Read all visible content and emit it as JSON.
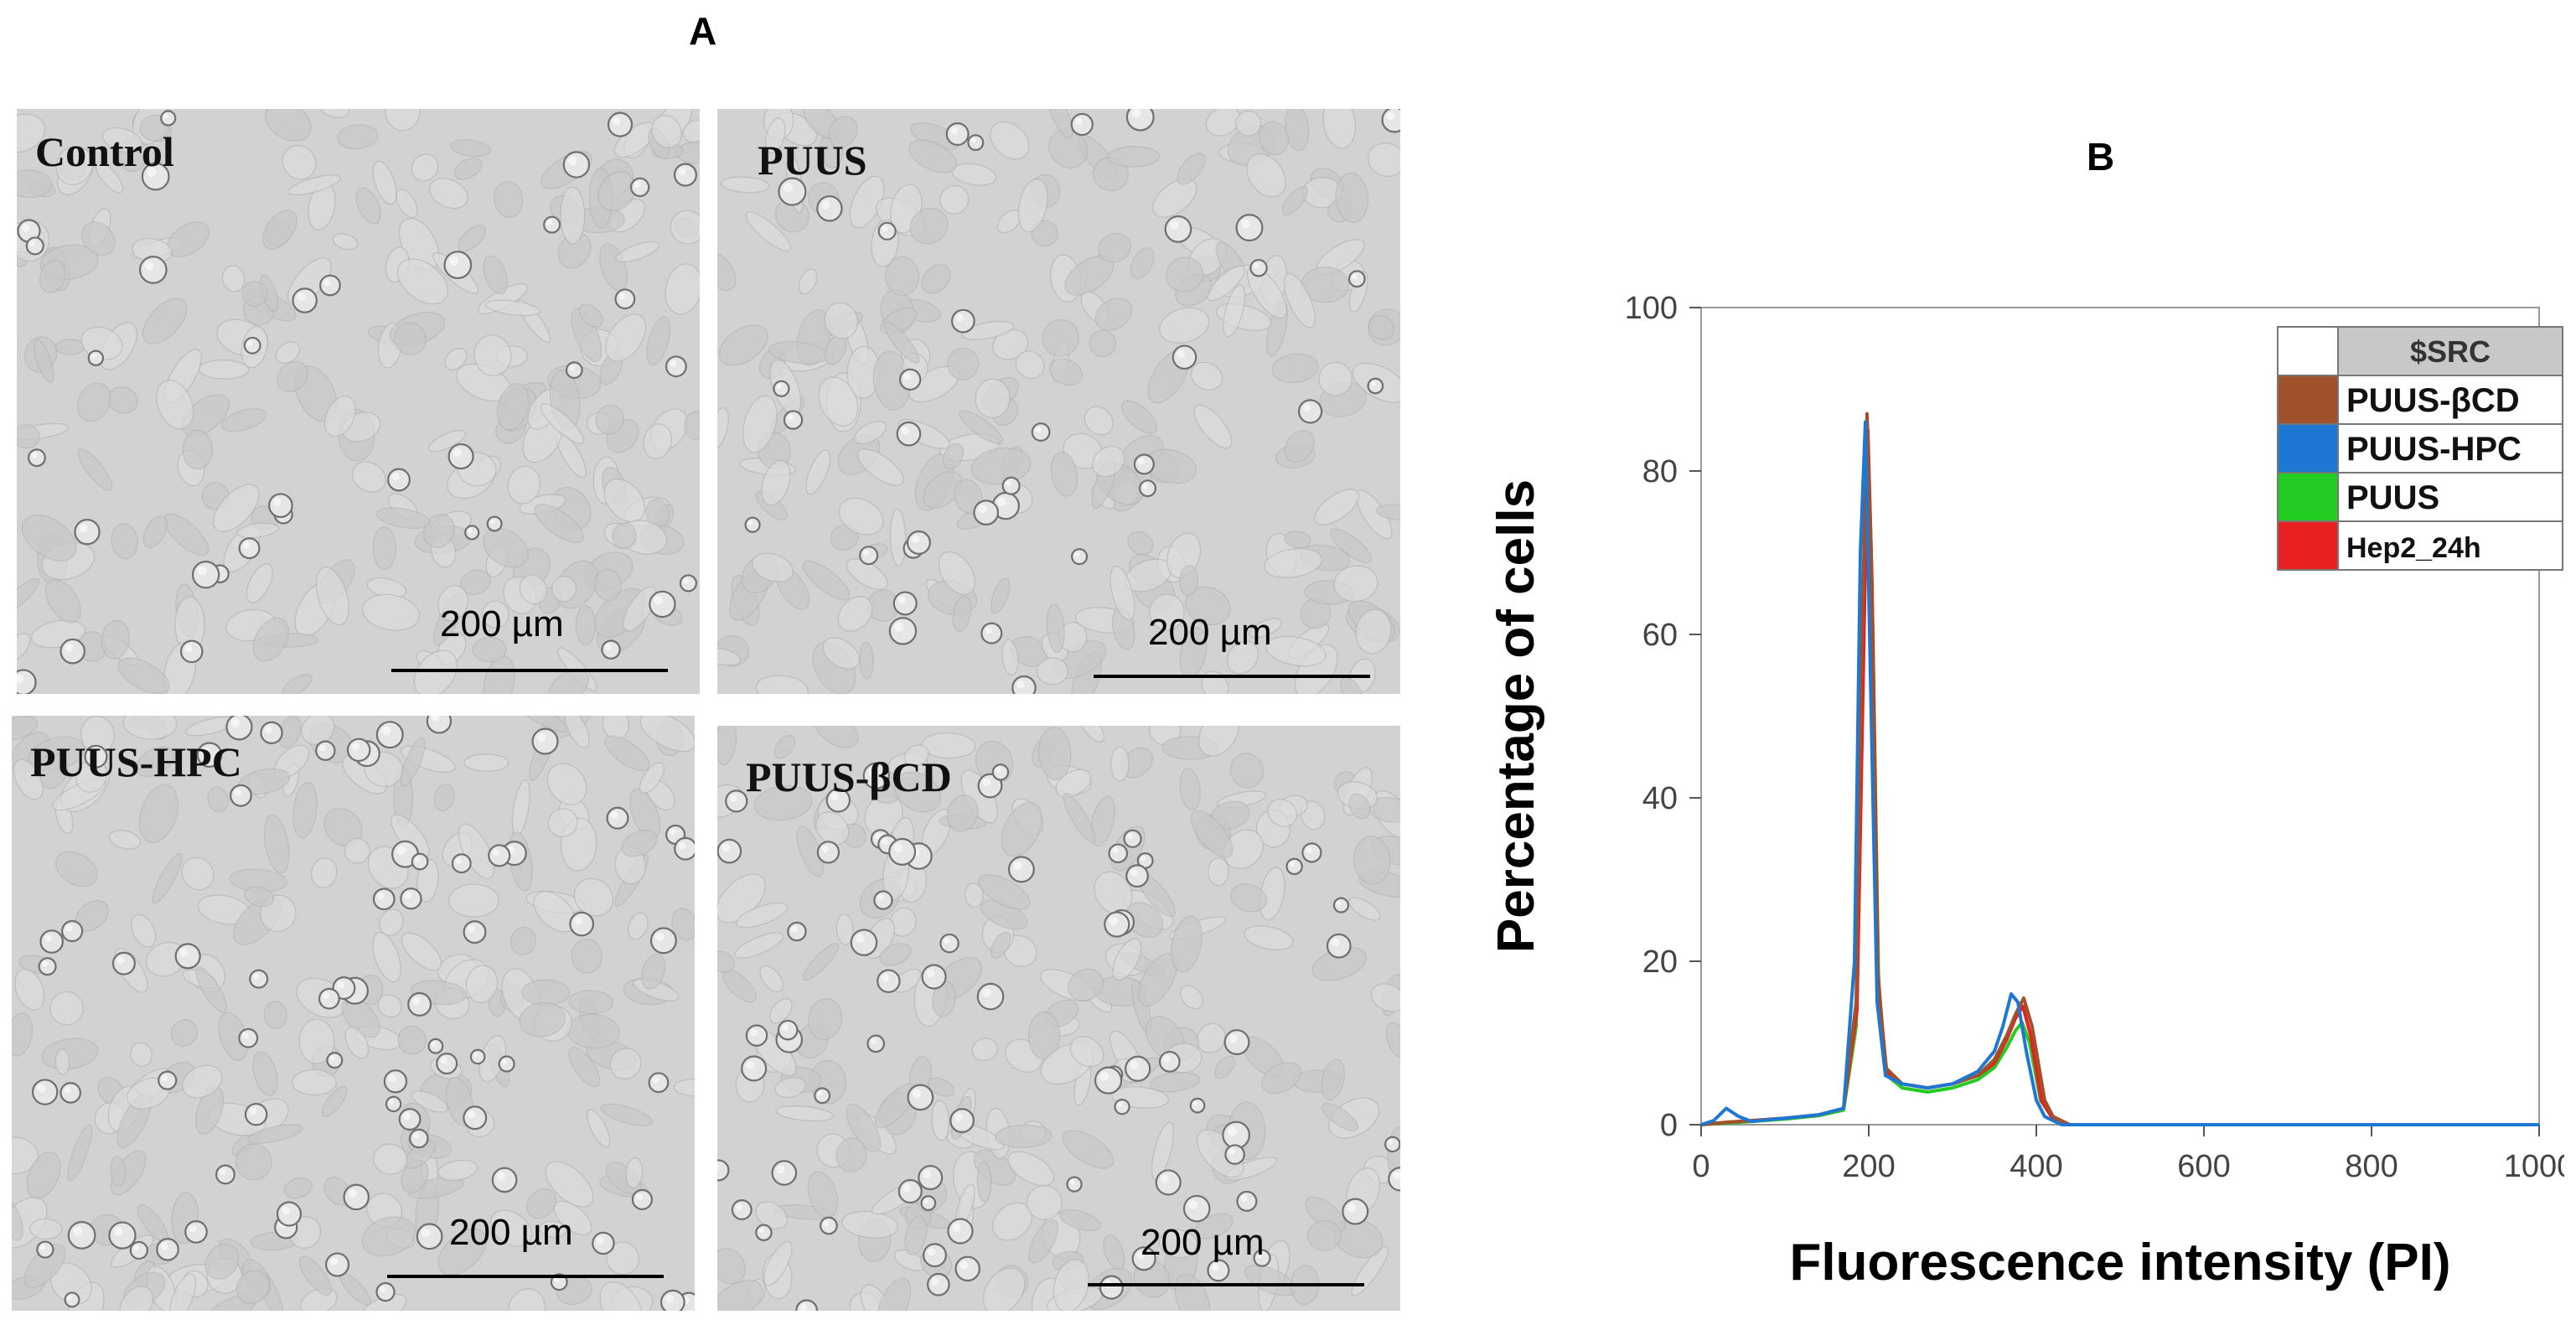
{
  "panel_a": {
    "letter": "A",
    "images": [
      {
        "label": "Control",
        "scale": "200 µm"
      },
      {
        "label": "PUUS",
        "scale": "200 µm"
      },
      {
        "label": "PUUS-HPC",
        "scale": "200 µm"
      },
      {
        "label": "PUUS-βCD",
        "scale": "200 µm"
      }
    ]
  },
  "panel_b": {
    "letter": "B"
  },
  "chart_data": {
    "type": "line",
    "title": "",
    "xlabel": "Fluorescence intensity (PI)",
    "ylabel": "Percentage of cells",
    "xlim": [
      0,
      1000
    ],
    "ylim": [
      0,
      100
    ],
    "x_ticks": [
      0,
      200,
      400,
      600,
      800,
      1000
    ],
    "y_ticks": [
      0,
      20,
      40,
      60,
      80,
      100
    ],
    "grid": false,
    "legend": {
      "placement": "top-right",
      "header": "$SRC",
      "entries": [
        "PUUS-βCD",
        "PUUS-HPC",
        "PUUS",
        "Hep2_24h"
      ]
    },
    "series": [
      {
        "name": "PUUS-βCD",
        "color": "#a0522d",
        "x": [
          0,
          30,
          60,
          100,
          140,
          170,
          185,
          192,
          198,
          203,
          210,
          220,
          240,
          270,
          300,
          330,
          350,
          365,
          375,
          385,
          395,
          410,
          420,
          440,
          1000
        ],
        "y": [
          0,
          0.3,
          0.5,
          0.8,
          1.2,
          2,
          15,
          60,
          87,
          70,
          20,
          7,
          5,
          4.5,
          5,
          6,
          8,
          11,
          13.5,
          15.5,
          12,
          3,
          1,
          0,
          0
        ]
      },
      {
        "name": "PUUS-HPC",
        "color": "#1f77d4",
        "x": [
          0,
          15,
          30,
          45,
          60,
          100,
          140,
          170,
          183,
          190,
          196,
          202,
          210,
          220,
          240,
          270,
          300,
          330,
          350,
          360,
          370,
          378,
          388,
          400,
          410,
          430,
          1000
        ],
        "y": [
          0,
          0.5,
          2,
          1,
          0.4,
          0.8,
          1.2,
          2,
          20,
          70,
          86,
          55,
          15,
          6,
          5,
          4.5,
          5,
          6.5,
          9,
          12,
          16,
          15,
          9,
          3,
          1,
          0,
          0
        ]
      },
      {
        "name": "PUUS",
        "color": "#22cc22",
        "x": [
          0,
          30,
          60,
          100,
          140,
          170,
          185,
          193,
          199,
          205,
          212,
          222,
          240,
          270,
          300,
          330,
          350,
          365,
          375,
          383,
          392,
          405,
          418,
          440,
          1000
        ],
        "y": [
          0,
          0.2,
          0.4,
          0.7,
          1.1,
          1.8,
          12,
          55,
          82,
          60,
          16,
          6,
          4.5,
          4,
          4.5,
          5.5,
          7,
          9.5,
          11.5,
          12.5,
          10,
          3,
          1,
          0,
          0
        ]
      },
      {
        "name": "Hep2_24h",
        "color": "#e82020",
        "x": [
          0,
          30,
          60,
          100,
          140,
          170,
          186,
          194,
          199,
          204,
          211,
          221,
          240,
          270,
          300,
          330,
          350,
          365,
          375,
          384,
          393,
          406,
          418,
          440,
          1000
        ],
        "y": [
          0,
          0.3,
          0.5,
          0.8,
          1.2,
          2,
          14,
          58,
          85,
          66,
          18,
          6.5,
          5,
          4.5,
          5,
          6,
          7.5,
          10.5,
          13,
          14.5,
          11,
          3,
          1,
          0,
          0
        ]
      }
    ]
  }
}
